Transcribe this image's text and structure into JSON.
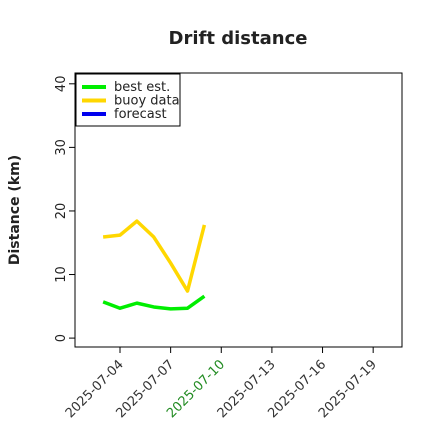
{
  "chart_data": {
    "type": "line",
    "title": "Drift distance",
    "ylabel": "Distance (km)",
    "x": [
      "2025-07-03",
      "2025-07-04",
      "2025-07-05",
      "2025-07-06",
      "2025-07-07",
      "2025-07-08",
      "2025-07-09"
    ],
    "series": [
      {
        "name": "best est.",
        "color": "#00ee00",
        "values": [
          5.7,
          4.7,
          5.5,
          4.9,
          4.6,
          4.7,
          6.6
        ]
      },
      {
        "name": "buoy data",
        "color": "#ffd700",
        "values": [
          15.9,
          16.2,
          18.4,
          15.9,
          11.8,
          7.4,
          17.8
        ]
      },
      {
        "name": "forecast",
        "color": "#0000ee",
        "values": [
          null,
          null,
          null,
          null,
          null,
          null,
          null
        ]
      }
    ],
    "xlim": [
      "2025-07-01T08:00",
      "2025-07-20T17:00"
    ],
    "xticks": [
      "2025-07-04",
      "2025-07-07",
      "2025-07-10",
      "2025-07-13",
      "2025-07-16",
      "2025-07-19"
    ],
    "xtick_colors": [
      "#333333",
      "#333333",
      "#228b22",
      "#333333",
      "#333333",
      "#333333"
    ],
    "ylim": [
      -1.4,
      41.7
    ],
    "yticks": [
      0,
      10,
      20,
      30,
      40
    ],
    "legend": "upper left"
  }
}
